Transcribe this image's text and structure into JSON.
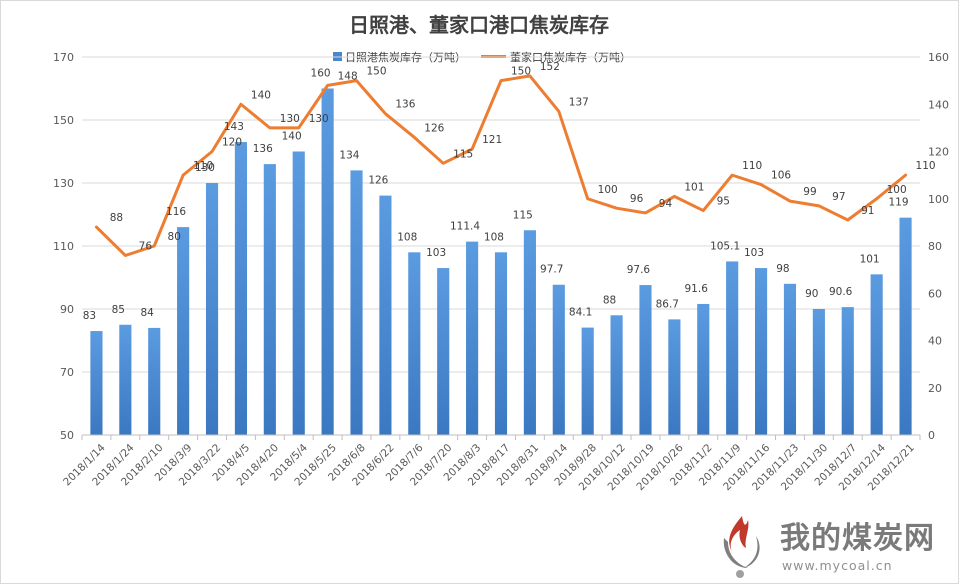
{
  "chart_data": {
    "type": "bar+line",
    "title": "日照港、董家口港口焦炭库存",
    "categories": [
      "2018/1/14",
      "2018/1/24",
      "2018/2/10",
      "2018/3/9",
      "2018/3/22",
      "2018/4/5",
      "2018/4/20",
      "2018/5/4",
      "2018/5/25",
      "2018/6/8",
      "2018/6/22",
      "2018/7/6",
      "2018/7/20",
      "2018/8/3",
      "2018/8/17",
      "2018/8/31",
      "2018/9/14",
      "2018/9/28",
      "2018/10/12",
      "2018/10/19",
      "2018/10/26",
      "2018/11/2",
      "2018/11/9",
      "2018/11/16",
      "2018/11/23",
      "2018/11/30",
      "2018/12/7",
      "2018/12/14",
      "2018/12/21"
    ],
    "series": [
      {
        "name": "日照港焦炭库存（万吨）",
        "kind": "bar",
        "axis": "left",
        "color": "#4a86cd",
        "values": [
          83,
          85,
          84,
          116,
          130,
          143,
          136,
          140,
          160,
          134,
          126,
          108,
          103,
          111.4,
          108,
          115,
          97.7,
          84.1,
          88,
          97.6,
          86.7,
          91.6,
          105.1,
          103,
          98,
          90,
          90.6,
          101,
          119
        ],
        "labels": [
          "83",
          "85",
          "84",
          "116",
          "130",
          "143",
          "136",
          "140",
          "160",
          "134",
          "126",
          "108",
          "103",
          "111.4",
          "108",
          "115",
          "97.7",
          "84.1",
          "88",
          "97.6",
          "86.7",
          "91.6",
          "105.1",
          "103",
          "98",
          "90",
          "90.6",
          "101",
          "119"
        ]
      },
      {
        "name": "董家口焦炭库存（万吨）",
        "kind": "line",
        "axis": "right",
        "color": "#ed7d31",
        "values": [
          88,
          76,
          80,
          110,
          120,
          140,
          130,
          130,
          148,
          150,
          136,
          126,
          115,
          121,
          150,
          152,
          137,
          100,
          96,
          94,
          101,
          95,
          110,
          106,
          99,
          97,
          91,
          100,
          110
        ],
        "labels": [
          "88",
          "76",
          "80",
          "110",
          "120",
          "140",
          "130",
          "130",
          "148",
          "150",
          "136",
          "126",
          "115",
          "121",
          "150",
          "152",
          "137",
          "100",
          "96",
          "94",
          "101",
          "95",
          "110",
          "106",
          "99",
          "97",
          "91",
          "100",
          "110"
        ]
      }
    ],
    "y_left": {
      "min": 50,
      "max": 170,
      "ticks": [
        "50",
        "70",
        "90",
        "110",
        "130",
        "150",
        "170"
      ]
    },
    "y_right": {
      "min": 0,
      "max": 160,
      "ticks": [
        "0",
        "20",
        "40",
        "60",
        "80",
        "100",
        "120",
        "140",
        "160"
      ]
    },
    "grid": true,
    "legend_position": "top"
  },
  "watermark": {
    "name": "我的煤炭网",
    "url": "www.mycoal.cn"
  }
}
